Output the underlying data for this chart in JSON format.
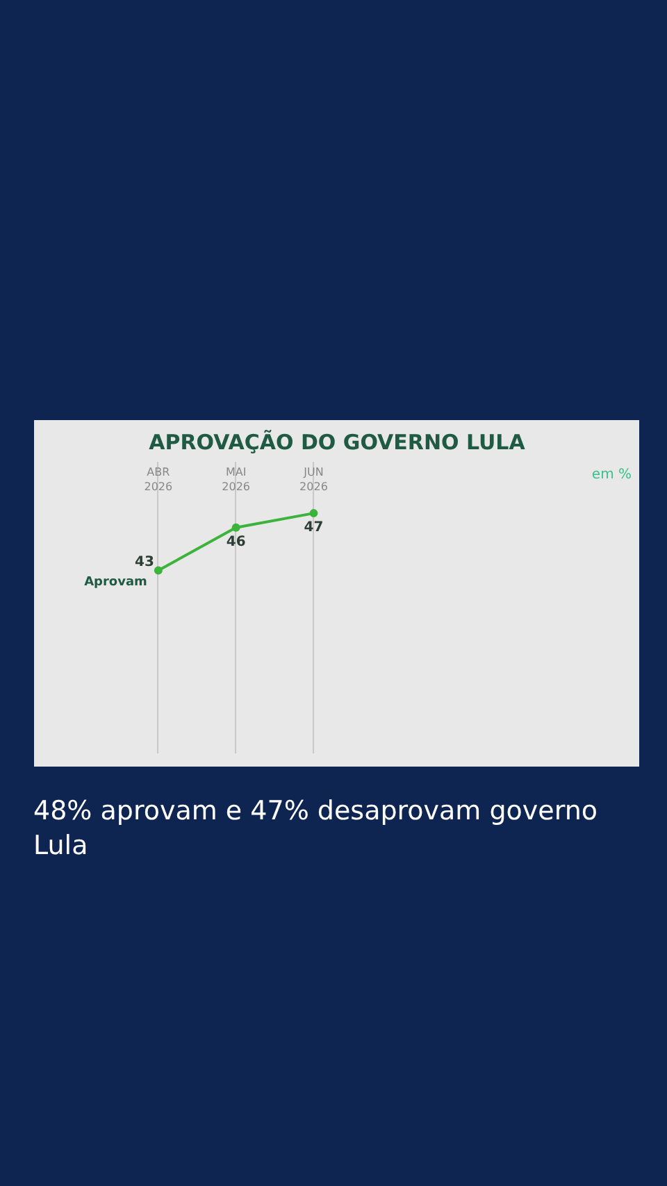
{
  "chart_data": {
    "type": "line",
    "title": "APROVAÇÃO DO GOVERNO LULA",
    "categories": [
      "ABR\n2026",
      "MAI\n2026",
      "JUN\n2026"
    ],
    "series": [
      {
        "name": "Aprovam",
        "color": "#3cb43c",
        "values": [
          43,
          46,
          47
        ]
      }
    ],
    "data_labels": true,
    "marker": "circle",
    "line_style": "solid",
    "grid": "x",
    "annotations": [
      "em %",
      "48% aprovam e 47% desaprovam governo Lula"
    ]
  }
}
